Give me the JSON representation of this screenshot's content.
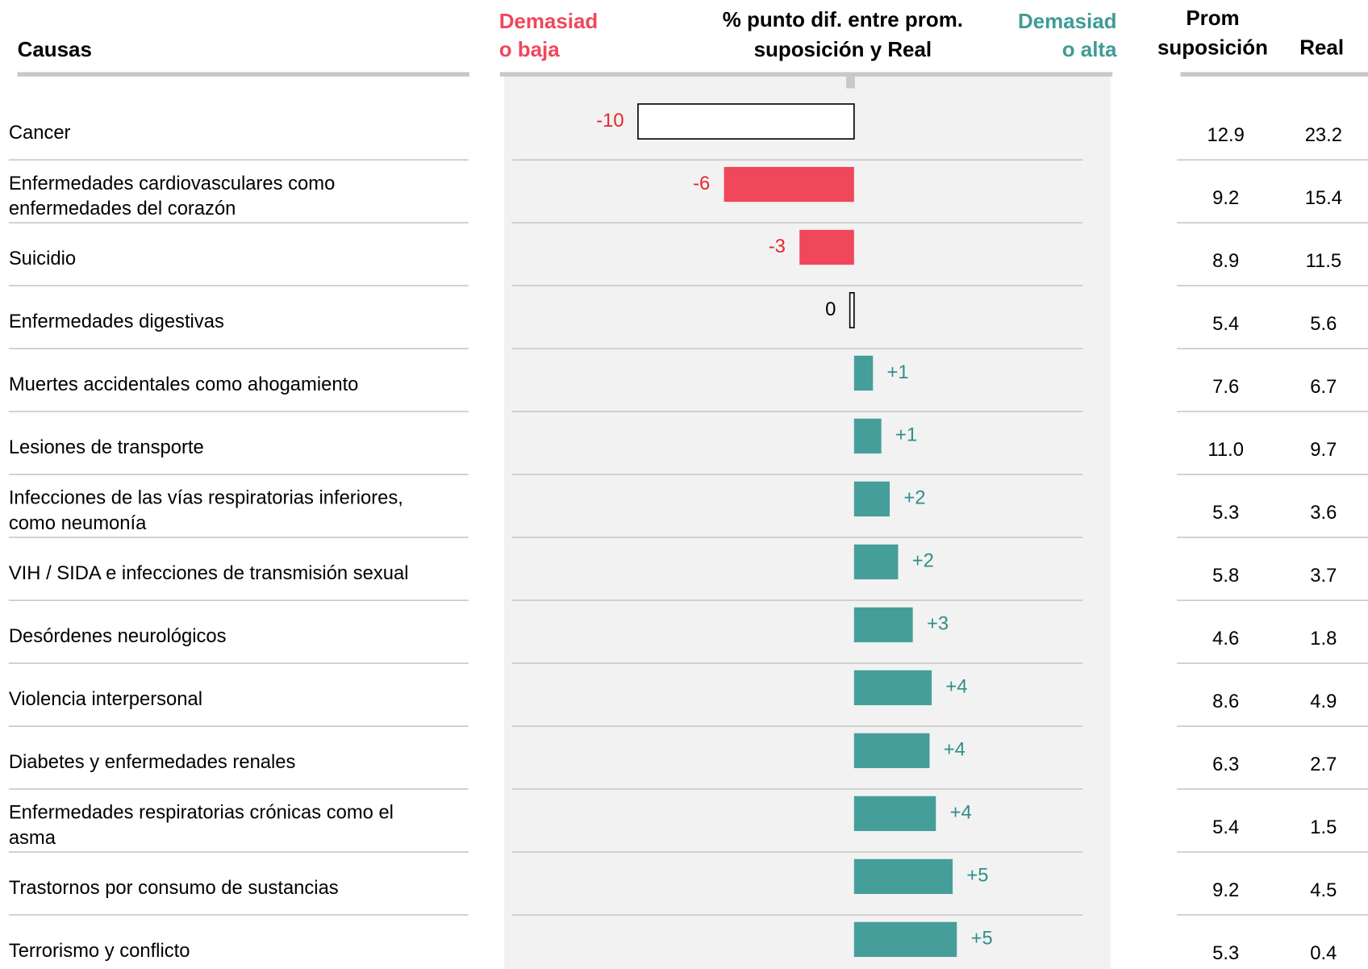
{
  "chart_data": {
    "type": "diverging_bar",
    "title": [
      "% punto dif. entre prom.",
      "suposición y Real"
    ],
    "left_label": [
      "Demasiad",
      "o baja"
    ],
    "right_label": [
      "Demasiad",
      "o alta"
    ],
    "left_label_color": "#f0475a",
    "right_label_color": "#3f9b97",
    "categories_header": "Causas",
    "categories": [
      "Cancer",
      [
        "Enfermedades cardiovasculares como",
        "enfermedades del corazón"
      ],
      "Suicidio",
      "Enfermedades digestivas",
      "Muertes accidentales como ahogamiento",
      "Lesiones de transporte",
      [
        "Infecciones de las vías respiratorias inferiores,",
        "como neumonía"
      ],
      "VIH / SIDA e infecciones de transmisión sexual",
      "Desórdenes neurológicos",
      "Violencia interpersonal",
      "Diabetes y enfermedades renales",
      [
        "Enfermedades respiratorias crónicas como el",
        "asma"
      ],
      "Trastornos por consumo de sustancias",
      "Terrorismo y conflicto"
    ],
    "values": [
      -10.3,
      -6.2,
      -2.6,
      -0.2,
      0.9,
      1.3,
      1.7,
      2.1,
      2.8,
      3.7,
      3.6,
      3.9,
      4.7,
      4.9
    ],
    "value_labels": [
      "-10",
      "-6",
      "-3",
      "0",
      "+1",
      "+1",
      "+2",
      "+2",
      "+3",
      "+4",
      "+4",
      "+4",
      "+5",
      "+5"
    ],
    "colors": [
      "#ffffff",
      "#f0475a",
      "#f0475a",
      "#ffffff",
      "#459e9a",
      "#459e9a",
      "#459e9a",
      "#459e9a",
      "#459e9a",
      "#459e9a",
      "#459e9a",
      "#459e9a",
      "#459e9a",
      "#459e9a"
    ],
    "label_colors": [
      "#e8262f",
      "#e8262f",
      "#e8262f",
      "#000000",
      "#2e8f8a",
      "#2e8f8a",
      "#2e8f8a",
      "#2e8f8a",
      "#2e8f8a",
      "#2e8f8a",
      "#2e8f8a",
      "#2e8f8a",
      "#2e8f8a",
      "#2e8f8a"
    ],
    "xlim": [
      -16.3,
      10.9
    ],
    "table": {
      "columns": [
        [
          "Prom",
          "suposición"
        ],
        "Real"
      ],
      "rows": [
        [
          "12.9",
          "23.2"
        ],
        [
          "9.2",
          "15.4"
        ],
        [
          "8.9",
          "11.5"
        ],
        [
          "5.4",
          "5.6"
        ],
        [
          "7.6",
          "6.7"
        ],
        [
          "11.0",
          "9.7"
        ],
        [
          "5.3",
          "3.6"
        ],
        [
          "5.8",
          "3.7"
        ],
        [
          "4.6",
          "1.8"
        ],
        [
          "8.6",
          "4.9"
        ],
        [
          "6.3",
          "2.7"
        ],
        [
          "5.4",
          "1.5"
        ],
        [
          "9.2",
          "4.5"
        ],
        [
          "5.3",
          "0.4"
        ]
      ]
    }
  }
}
